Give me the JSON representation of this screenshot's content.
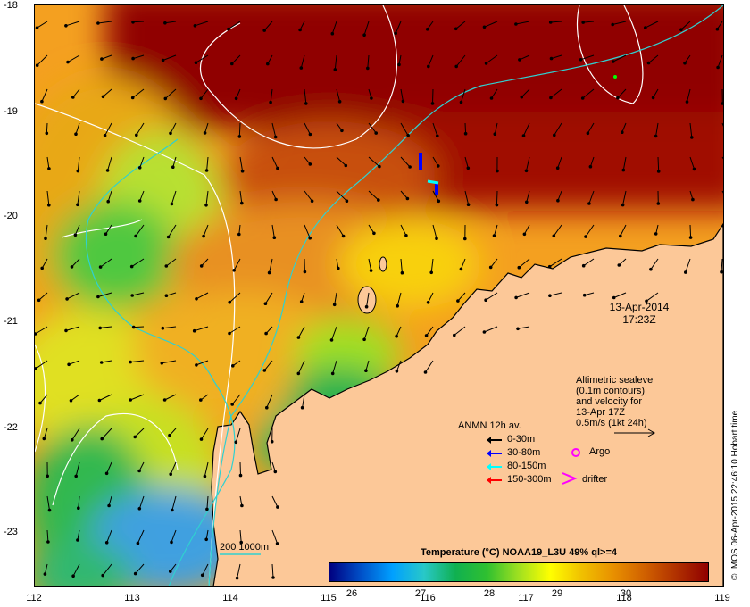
{
  "map": {
    "date": "13-Apr-2014",
    "time": "17:23Z",
    "y_ticks": [
      "-18",
      "-19",
      "-20",
      "-21",
      "-22",
      "-23"
    ],
    "x_ticks": [
      "112",
      "113",
      "114",
      "115",
      "116",
      "117",
      "118",
      "119"
    ]
  },
  "sealevel_note": {
    "lines": [
      "Altimetric sealevel",
      "(0.1m contours)",
      "and velocity for",
      "13-Apr 17Z",
      "0.5m/s (1kt 24h)"
    ]
  },
  "anmn_legend": {
    "title": "ANMN 12h av.",
    "items": [
      {
        "label": "0-30m",
        "color": "#000000"
      },
      {
        "label": "30-80m",
        "color": "#0000ff"
      },
      {
        "label": "80-150m",
        "color": "#00ffff"
      },
      {
        "label": "150-300m",
        "color": "#ff0000"
      }
    ]
  },
  "markers": {
    "argo_label": "Argo",
    "drifter_label": "drifter"
  },
  "bathymetry": {
    "label": "200  1000m"
  },
  "colorbar": {
    "title": "Temperature (°C) NOAA19_L3U 49% ql>=4",
    "ticks": [
      "26",
      "27",
      "28",
      "29",
      "30"
    ],
    "colors": [
      "#000080",
      "#0050c8",
      "#00a0ff",
      "#28c8c8",
      "#10b050",
      "#30c030",
      "#a0e020",
      "#ffff00",
      "#f0c000",
      "#e89000",
      "#d06000",
      "#b03000",
      "#900000"
    ]
  },
  "credit": "© IMOS 06-Apr-2015 22:46:10 Hobart time"
}
